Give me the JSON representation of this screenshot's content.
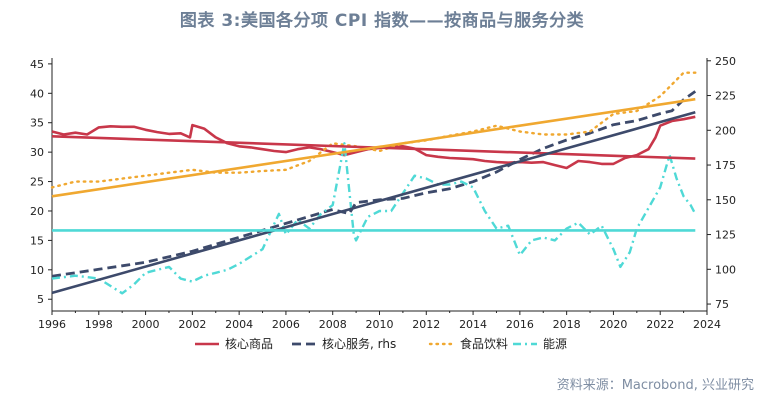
{
  "title": "图表 3:美国各分项 CPI 指数——按商品与服务分类",
  "source": "资料来源：Macrobond, 兴业研究",
  "colors": {
    "core_goods": "#c8374a",
    "core_services": "#3d4a6b",
    "food": "#f0a830",
    "energy": "#4fd9d6",
    "trend_goods": "#c8374a",
    "trend_services": "#3d4a6b",
    "trend_food": "#f0a830",
    "axis": "#222222"
  },
  "chart_data": {
    "type": "line",
    "title": "图表 3:美国各分项 CPI 指数——按商品与服务分类",
    "xlabel": "",
    "ylabel": "",
    "xlim": [
      1996,
      2024
    ],
    "ylim_left": [
      3,
      46
    ],
    "ylim_right": [
      70,
      252
    ],
    "x_ticks": [
      1996,
      1998,
      2000,
      2002,
      2004,
      2006,
      2008,
      2010,
      2012,
      2014,
      2016,
      2018,
      2020,
      2022,
      2024
    ],
    "y_ticks_left": [
      5,
      10,
      15,
      20,
      25,
      30,
      35,
      40,
      45
    ],
    "y_ticks_right": [
      75,
      100,
      125,
      150,
      175,
      200,
      225,
      250
    ],
    "legend": [
      "核心商品",
      "核心服务, rhs",
      "食品饮料",
      "能源"
    ],
    "legend_position": "bottom",
    "series": [
      {
        "name": "核心商品",
        "axis": "left",
        "style": "solid",
        "points": [
          [
            1996,
            33.5
          ],
          [
            1996.5,
            33.0
          ],
          [
            1997,
            33.3
          ],
          [
            1997.5,
            33.0
          ],
          [
            1998,
            34.2
          ],
          [
            1998.5,
            34.4
          ],
          [
            1999,
            34.3
          ],
          [
            1999.5,
            34.3
          ],
          [
            2000,
            33.8
          ],
          [
            2000.5,
            33.4
          ],
          [
            2001,
            33.1
          ],
          [
            2001.5,
            33.2
          ],
          [
            2001.9,
            32.5
          ],
          [
            2002,
            34.6
          ],
          [
            2002.5,
            34.0
          ],
          [
            2003,
            32.5
          ],
          [
            2003.5,
            31.5
          ],
          [
            2004,
            31.0
          ],
          [
            2004.5,
            30.8
          ],
          [
            2005,
            30.5
          ],
          [
            2005.5,
            30.2
          ],
          [
            2006,
            30.0
          ],
          [
            2006.5,
            30.5
          ],
          [
            2007,
            30.8
          ],
          [
            2007.5,
            30.5
          ],
          [
            2008,
            30.0
          ],
          [
            2008.5,
            29.5
          ],
          [
            2009,
            30.0
          ],
          [
            2009.5,
            30.5
          ],
          [
            2010,
            30.7
          ],
          [
            2010.5,
            30.9
          ],
          [
            2011,
            31.0
          ],
          [
            2011.5,
            30.6
          ],
          [
            2012,
            29.5
          ],
          [
            2012.5,
            29.2
          ],
          [
            2013,
            29.0
          ],
          [
            2013.5,
            28.9
          ],
          [
            2014,
            28.8
          ],
          [
            2014.5,
            28.5
          ],
          [
            2015,
            28.3
          ],
          [
            2015.5,
            28.2
          ],
          [
            2016,
            28.3
          ],
          [
            2016.5,
            28.2
          ],
          [
            2017,
            28.3
          ],
          [
            2017.5,
            27.8
          ],
          [
            2018,
            27.3
          ],
          [
            2018.5,
            28.5
          ],
          [
            2019,
            28.3
          ],
          [
            2019.5,
            28.0
          ],
          [
            2020,
            28.0
          ],
          [
            2020.5,
            29.0
          ],
          [
            2021,
            29.5
          ],
          [
            2021.5,
            30.5
          ],
          [
            2021.8,
            32.5
          ],
          [
            2022,
            34.5
          ],
          [
            2022.5,
            35.3
          ],
          [
            2023,
            35.6
          ],
          [
            2023.5,
            36.0
          ]
        ]
      },
      {
        "name": "核心服务, rhs",
        "axis": "right",
        "style": "dashed",
        "points": [
          [
            1996,
            95
          ],
          [
            1998,
            100
          ],
          [
            2000,
            105
          ],
          [
            2002,
            113
          ],
          [
            2004,
            123
          ],
          [
            2006,
            133
          ],
          [
            2008,
            143
          ],
          [
            2008.7,
            140
          ],
          [
            2009,
            148
          ],
          [
            2010,
            150
          ],
          [
            2011,
            151
          ],
          [
            2012,
            155
          ],
          [
            2013,
            158
          ],
          [
            2014,
            163
          ],
          [
            2015,
            170
          ],
          [
            2016,
            179
          ],
          [
            2017,
            187
          ],
          [
            2018,
            193
          ],
          [
            2019,
            198
          ],
          [
            2020,
            204
          ],
          [
            2021,
            207
          ],
          [
            2022,
            212
          ],
          [
            2022.5,
            214
          ],
          [
            2023,
            222
          ],
          [
            2023.5,
            228
          ]
        ]
      },
      {
        "name": "食品饮料",
        "axis": "left",
        "style": "dotted",
        "points": [
          [
            1996,
            24.0
          ],
          [
            1997,
            25.0
          ],
          [
            1998,
            25.0
          ],
          [
            1999,
            25.5
          ],
          [
            2000,
            26.0
          ],
          [
            2001,
            26.5
          ],
          [
            2002,
            27.0
          ],
          [
            2003,
            26.5
          ],
          [
            2004,
            26.5
          ],
          [
            2005,
            26.8
          ],
          [
            2006,
            27.0
          ],
          [
            2007,
            28.5
          ],
          [
            2008,
            31.5
          ],
          [
            2009,
            31.0
          ],
          [
            2010,
            30.2
          ],
          [
            2011,
            31.5
          ],
          [
            2012,
            32.0
          ],
          [
            2013,
            32.8
          ],
          [
            2014,
            33.5
          ],
          [
            2015,
            34.5
          ],
          [
            2016,
            33.5
          ],
          [
            2017,
            33.0
          ],
          [
            2018,
            33.0
          ],
          [
            2019,
            33.5
          ],
          [
            2020,
            36.5
          ],
          [
            2021,
            37.0
          ],
          [
            2022,
            39.5
          ],
          [
            2022.5,
            41.5
          ],
          [
            2023,
            43.5
          ],
          [
            2023.5,
            43.5
          ]
        ]
      },
      {
        "name": "能源",
        "axis": "left",
        "style": "dashdot",
        "points": [
          [
            1996,
            8.5
          ],
          [
            1997,
            9.0
          ],
          [
            1998,
            8.5
          ],
          [
            1999,
            6.0
          ],
          [
            1999.5,
            7.5
          ],
          [
            2000,
            9.5
          ],
          [
            2001,
            10.5
          ],
          [
            2001.5,
            8.5
          ],
          [
            2002,
            8.0
          ],
          [
            2002.5,
            9.0
          ],
          [
            2003,
            9.5
          ],
          [
            2003.5,
            10.0
          ],
          [
            2004,
            11.0
          ],
          [
            2005,
            13.5
          ],
          [
            2005.7,
            19.5
          ],
          [
            2006,
            16.0
          ],
          [
            2006.5,
            18.5
          ],
          [
            2007,
            17.0
          ],
          [
            2007.5,
            19.5
          ],
          [
            2008,
            21.0
          ],
          [
            2008.5,
            31.5
          ],
          [
            2008.9,
            16.0
          ],
          [
            2009,
            15.0
          ],
          [
            2009.5,
            19.0
          ],
          [
            2010,
            20.0
          ],
          [
            2010.5,
            20.0
          ],
          [
            2011,
            23.0
          ],
          [
            2011.5,
            26.0
          ],
          [
            2012,
            25.5
          ],
          [
            2012.5,
            24.5
          ],
          [
            2013,
            24.5
          ],
          [
            2013.5,
            25.0
          ],
          [
            2014,
            24.0
          ],
          [
            2014.5,
            20.0
          ],
          [
            2015,
            17.0
          ],
          [
            2015.5,
            17.5
          ],
          [
            2016,
            12.5
          ],
          [
            2016.5,
            15.0
          ],
          [
            2017,
            15.5
          ],
          [
            2017.5,
            15.0
          ],
          [
            2018,
            17.0
          ],
          [
            2018.5,
            18.0
          ],
          [
            2019,
            16.0
          ],
          [
            2019.5,
            17.5
          ],
          [
            2020,
            13.5
          ],
          [
            2020.3,
            10.5
          ],
          [
            2020.7,
            13.0
          ],
          [
            2021,
            17.0
          ],
          [
            2021.5,
            20.5
          ],
          [
            2022,
            24.0
          ],
          [
            2022.4,
            29.5
          ],
          [
            2022.7,
            25.5
          ],
          [
            2023,
            22.5
          ],
          [
            2023.3,
            21.0
          ],
          [
            2023.5,
            19.5
          ]
        ]
      },
      {
        "name": "",
        "axis": "left",
        "style": "trend",
        "color_key": "trend_goods",
        "points": [
          [
            1996,
            32.7
          ],
          [
            2023.5,
            28.9
          ]
        ]
      },
      {
        "name": "",
        "axis": "right",
        "style": "trend",
        "color_key": "trend_services",
        "points": [
          [
            1996,
            83
          ],
          [
            2023.5,
            213
          ]
        ]
      },
      {
        "name": "",
        "axis": "left",
        "style": "trend",
        "color_key": "trend_food",
        "points": [
          [
            1996,
            22.5
          ],
          [
            2023.5,
            39.0
          ]
        ]
      },
      {
        "name": "",
        "axis": "left",
        "style": "trend",
        "color_key": "energy",
        "points": [
          [
            1996,
            16.7
          ],
          [
            2023.5,
            16.7
          ]
        ]
      }
    ]
  }
}
